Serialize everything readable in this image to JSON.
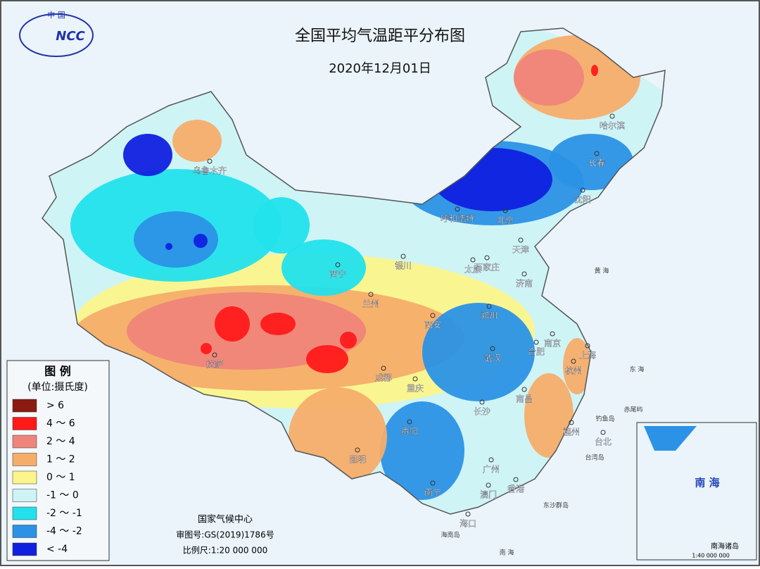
{
  "header": {
    "logo": {
      "country": "中 国",
      "acronym": "NCC"
    },
    "title": "全国平均气温距平分布图",
    "date": "2020年12月01日"
  },
  "legend": {
    "title": "图 例",
    "unit": "(单位:摄氏度)",
    "items": [
      {
        "label": "> 6",
        "color": "#8b1a10"
      },
      {
        "label": "4 ～ 6",
        "color": "#ff1a1a"
      },
      {
        "label": "2 ～ 4",
        "color": "#ef857a"
      },
      {
        "label": "1 ～ 2",
        "color": "#f6ad6a"
      },
      {
        "label": "0 ～ 1",
        "color": "#fbf58c"
      },
      {
        "label": "-1 ～ 0",
        "color": "#cdf3f5"
      },
      {
        "label": "-2 ～ -1",
        "color": "#22e1ec"
      },
      {
        "label": "-4 ～ -2",
        "color": "#2b92e6"
      },
      {
        "label": "< -4",
        "color": "#1020e0"
      }
    ]
  },
  "cities": [
    "乌鲁木齐",
    "哈尔滨",
    "长春",
    "沈阳",
    "呼和浩特",
    "北京",
    "天津",
    "石家庄",
    "太原",
    "银川",
    "西宁",
    "兰州",
    "济南",
    "郑州",
    "西安",
    "南京",
    "上海",
    "合肥",
    "杭州",
    "武汉",
    "成都",
    "重庆",
    "拉萨",
    "南昌",
    "长沙",
    "贵阳",
    "福州",
    "台北",
    "昆明",
    "广州",
    "南宁",
    "澳门",
    "香港",
    "海口"
  ],
  "places": [
    "黄 海",
    "东 海",
    "钓鱼岛",
    "赤尾屿",
    "台湾岛",
    "东沙群岛",
    "海南岛",
    "南 海"
  ],
  "inset": {
    "label": "南 海",
    "title": "南海诸岛",
    "scale": "1:40 000 000"
  },
  "footer": {
    "agency": "国家气候中心",
    "approval": "审图号:GS(2019)1786号",
    "scale": "比例尺:1:20 000 000"
  }
}
